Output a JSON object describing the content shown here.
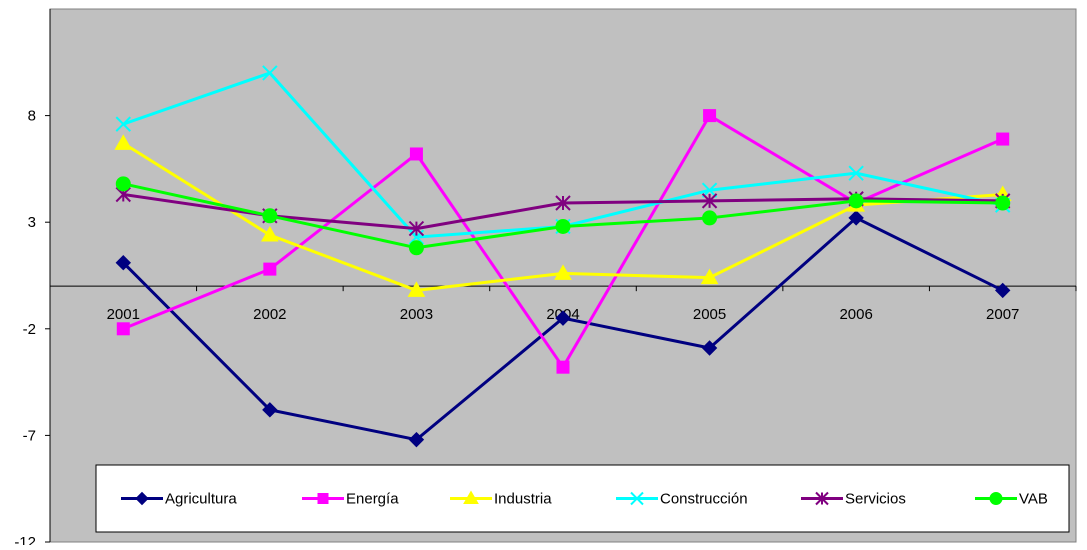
{
  "chart_data": {
    "type": "line",
    "title": "",
    "xlabel": "",
    "ylabel": "",
    "categories": [
      "2001",
      "2002",
      "2003",
      "2004",
      "2005",
      "2006",
      "2007"
    ],
    "ylim": [
      -12,
      13
    ],
    "yticks": [
      8,
      3,
      -2,
      -7,
      -12
    ],
    "grid": false,
    "plot_background": "#C0C0C0",
    "legend_position": "bottom-inside",
    "series": [
      {
        "name": "Agricultura",
        "color": "#000080",
        "marker": "diamond",
        "values": [
          1.1,
          -5.8,
          -7.2,
          -1.5,
          -2.9,
          3.2,
          -0.2
        ]
      },
      {
        "name": "Energía",
        "color": "#FF00FF",
        "marker": "square",
        "values": [
          -2.0,
          0.8,
          6.2,
          -3.8,
          8.0,
          3.9,
          6.9
        ]
      },
      {
        "name": "Industria",
        "color": "#FFFF00",
        "marker": "triangle",
        "values": [
          6.7,
          2.4,
          -0.2,
          0.6,
          0.4,
          3.8,
          4.3
        ]
      },
      {
        "name": "Construcción",
        "color": "#00FFFF",
        "marker": "x",
        "values": [
          7.6,
          10.0,
          2.3,
          2.8,
          4.5,
          5.3,
          3.8
        ]
      },
      {
        "name": "Servicios",
        "color": "#800080",
        "marker": "asterisk",
        "values": [
          4.3,
          3.3,
          2.7,
          3.9,
          4.0,
          4.1,
          4.0
        ]
      },
      {
        "name": "VAB",
        "color": "#00FF00",
        "marker": "circle",
        "values": [
          4.8,
          3.3,
          1.8,
          2.8,
          3.2,
          4.0,
          3.9
        ]
      }
    ]
  }
}
